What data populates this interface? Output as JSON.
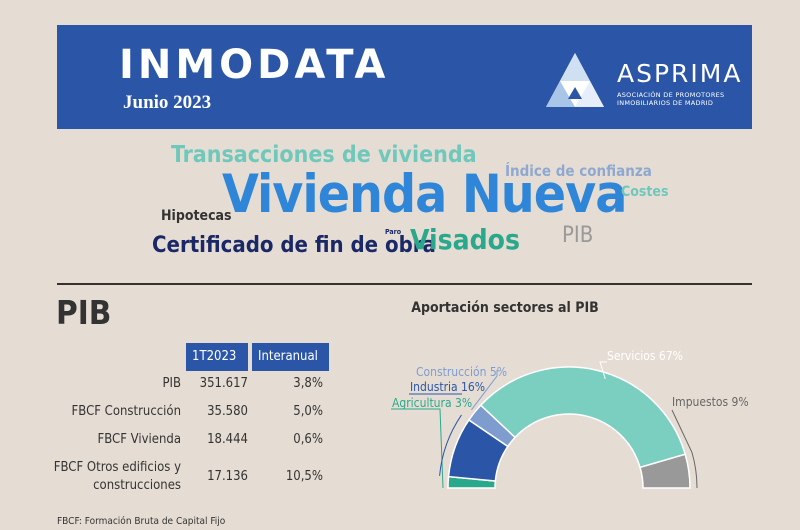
{
  "header": {
    "title": "INMODATA",
    "date": "Junio 2023",
    "logo_name": "ASPRIMA",
    "logo_subtitle": "Asociación de Promotores Inmobiliarios de Madrid"
  },
  "word_cloud": {
    "words": [
      "Transacciones de vivienda",
      "Índice de confianza",
      "Vivienda Nueva",
      "Costes",
      "Hipotecas",
      "Certificado de fin de obra",
      "Paro",
      "Visados",
      "PIB"
    ]
  },
  "pib": {
    "section_title": "PIB",
    "columns": [
      "1T2023",
      "Interanual"
    ],
    "rows": [
      {
        "label": "PIB",
        "value": "351.617",
        "interanual": "3,8%"
      },
      {
        "label": "FBCF Construcción",
        "value": "35.580",
        "interanual": "5,0%"
      },
      {
        "label": "FBCF Vivienda",
        "value": "18.444",
        "interanual": "0,6%"
      },
      {
        "label": "FBCF Otros edificios y construcciones",
        "label_line1": "FBCF Otros edificios y",
        "label_line2": "construcciones",
        "value": "17.136",
        "interanual": "10,5%"
      }
    ],
    "footnote": "FBCF: Formación Bruta de Capital Fijo"
  },
  "chart_data": {
    "type": "pie",
    "variant": "half-donut",
    "title": "Aportación sectores al PIB",
    "categories": [
      "Agricultura",
      "Industria",
      "Construcción",
      "Servicios",
      "Impuestos"
    ],
    "values": [
      3,
      16,
      5,
      67,
      9
    ],
    "labels": [
      "Agricultura 3%",
      "Industria 16%",
      "Construcción 5%",
      "Servicios 67%",
      "Impuestos 9%"
    ],
    "colors": [
      "#2aa88c",
      "#2b56a7",
      "#7f9ccf",
      "#7acfc0",
      "#999999"
    ],
    "label_colors": [
      "#2aa88c",
      "#2b56a7",
      "#7f9ccf",
      "#ffffff",
      "#666666"
    ]
  }
}
